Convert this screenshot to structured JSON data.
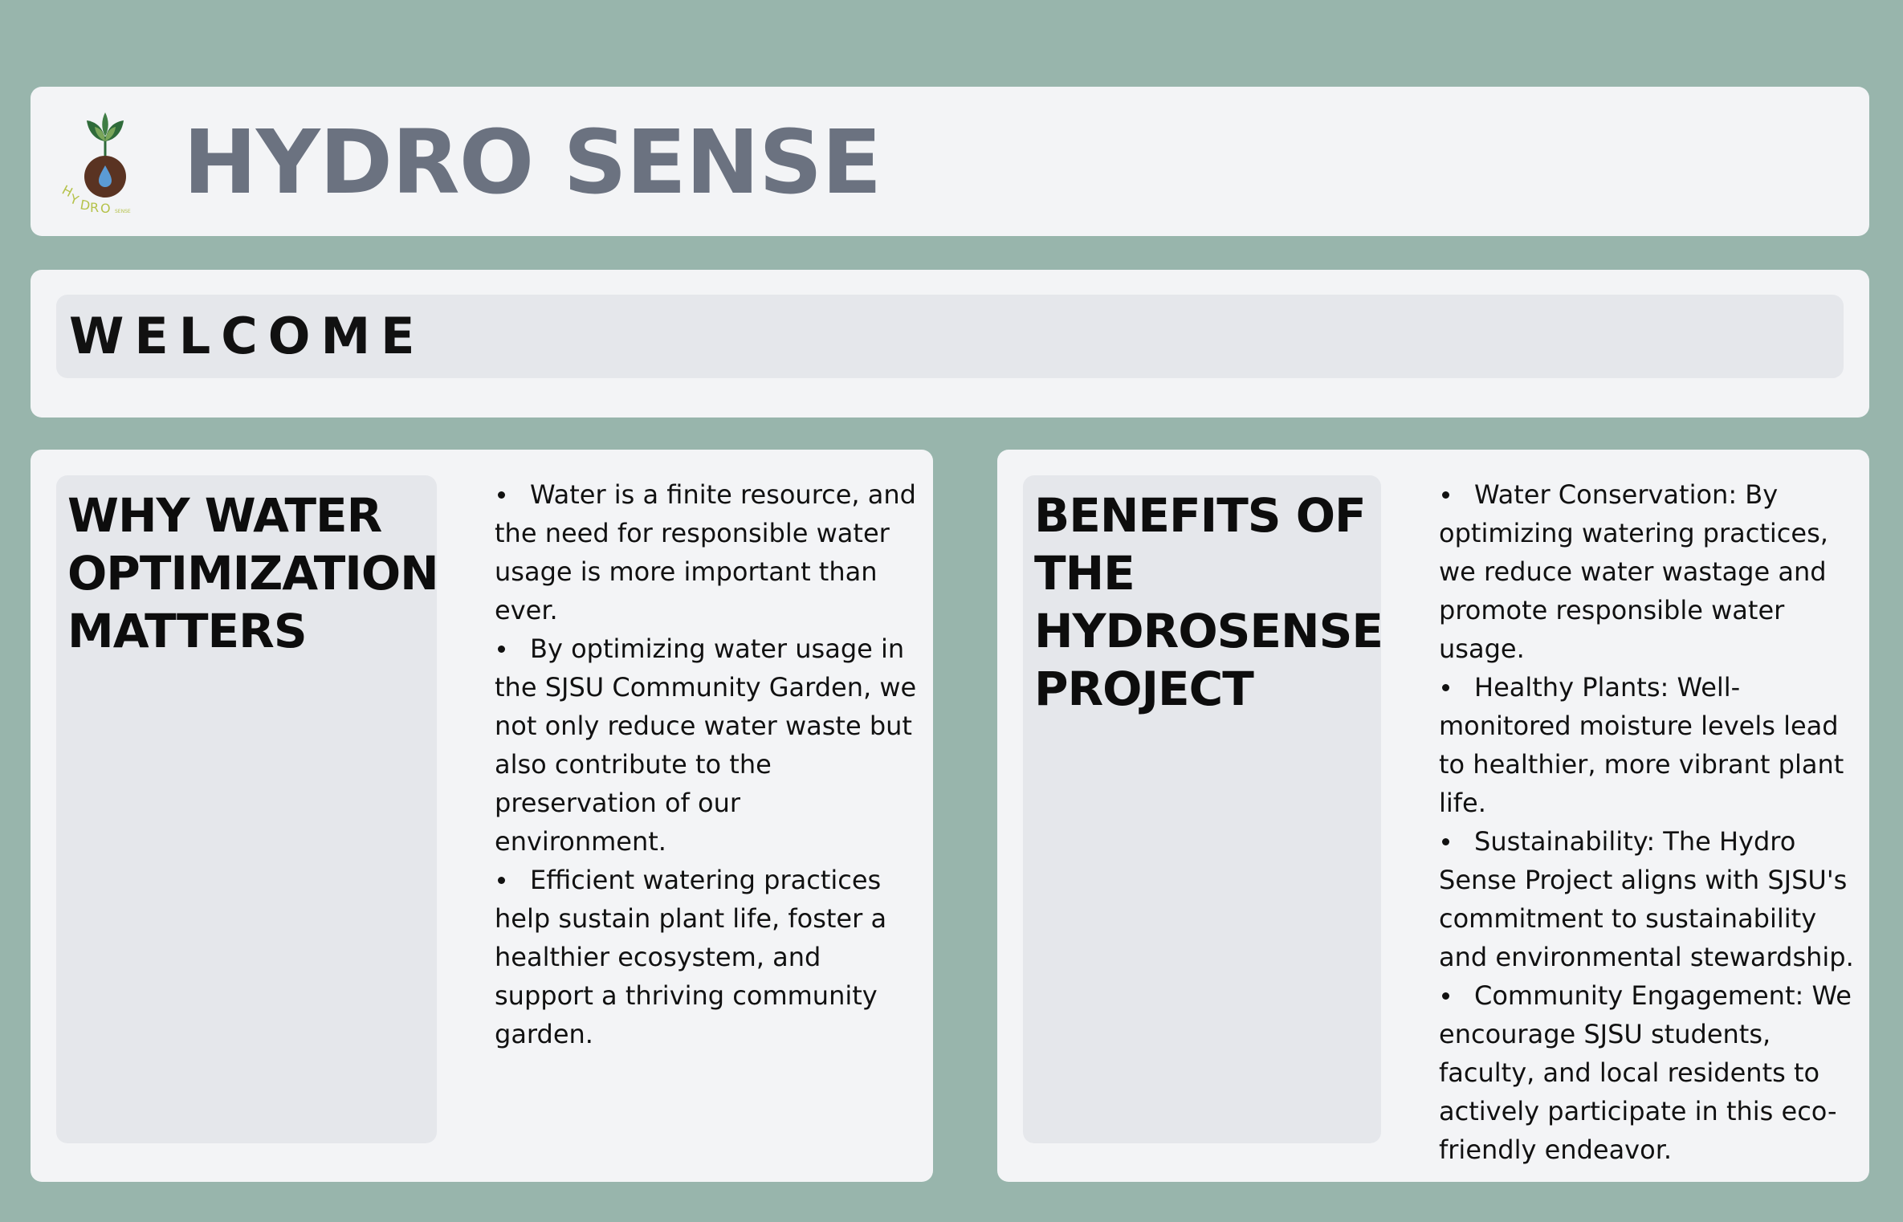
{
  "header": {
    "title": "HYDRO SENSE",
    "logo": {
      "icon": "sprout-water-drop-logo",
      "wordmark": "HYDRO",
      "wordmark_small": "SENSE",
      "colors": {
        "leaf": "#2f6b3a",
        "soil": "#5a3322",
        "drop": "#5b9bd5",
        "wordmark": "#b5c24a"
      }
    }
  },
  "welcome": {
    "text": "WELCOME"
  },
  "why": {
    "heading": "WHY WATER OPTIMIZATION MATTERS",
    "bullets": [
      "Water is a finite resource, and the need for responsible water usage is more important than ever.",
      "By optimizing water usage in the SJSU Community Garden, we not only reduce water waste but also contribute to the preservation of our environment.",
      "Efficient watering practices help sustain plant life, foster a healthier ecosystem, and support a thriving community garden."
    ]
  },
  "benefits": {
    "heading": "BENEFITS OF THE HYDROSENSE PROJECT",
    "bullets": [
      "Water Conservation: By optimizing watering practices, we reduce water wastage and promote responsible water usage.",
      "Healthy Plants: Well-monitored moisture levels lead to healthier, more vibrant plant life.",
      "Sustainability: The Hydro Sense Project aligns with SJSU's commitment to sustainability and environmental stewardship.",
      "Community Engagement: We encourage SJSU students, faculty, and local residents to actively participate in this eco-friendly endeavor."
    ]
  },
  "theme": {
    "page_background": "#98b5ac",
    "card_background": "#f3f4f6",
    "panel_background": "#e5e7eb",
    "title_color": "#6b7280"
  }
}
